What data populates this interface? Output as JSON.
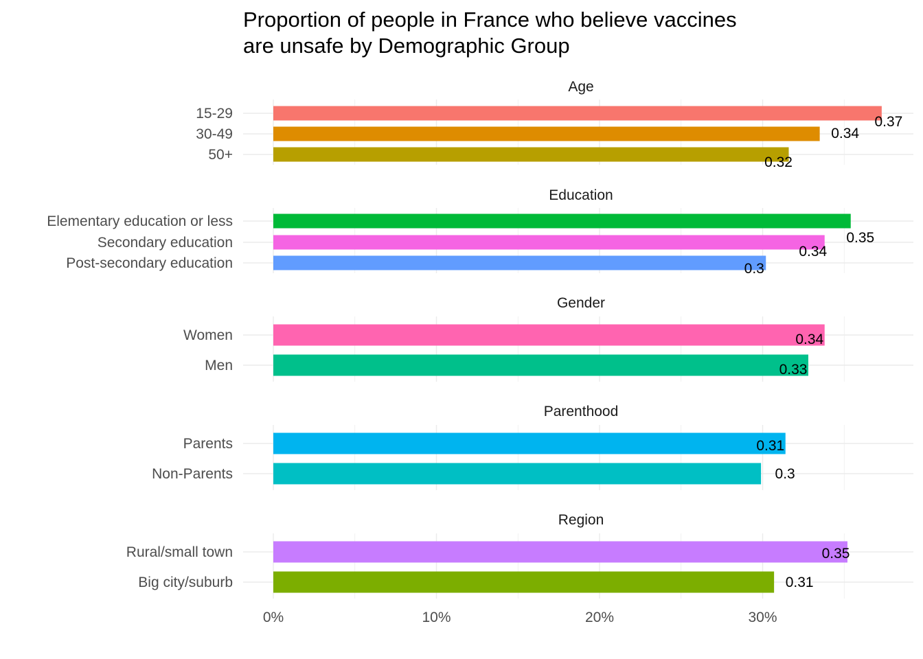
{
  "chart_data": {
    "type": "bar",
    "orientation": "horizontal",
    "title_lines": [
      "Proportion of people in France who believe vaccines",
      "are unsafe by Demographic Group"
    ],
    "xlim": [
      0,
      0.37
    ],
    "x_ticks": [
      {
        "value": 0,
        "label": "0%"
      },
      {
        "value": 0.1,
        "label": "10%"
      },
      {
        "value": 0.2,
        "label": "20%"
      },
      {
        "value": 0.3,
        "label": "30%"
      }
    ],
    "grid": true,
    "legend": "none",
    "facets": [
      {
        "name": "Age",
        "bars": [
          {
            "category": "15-29",
            "value": 0.373,
            "label": "0.37",
            "color": "#F8766D"
          },
          {
            "category": "30-49",
            "value": 0.335,
            "label": "0.34",
            "color": "#DE8C00"
          },
          {
            "category": "50+",
            "value": 0.316,
            "label": "0.32",
            "color": "#B79F00"
          }
        ]
      },
      {
        "name": "Education",
        "bars": [
          {
            "category": "Elementary education or less",
            "value": 0.354,
            "label": "0.35",
            "color": "#00BA38"
          },
          {
            "category": "Secondary education",
            "value": 0.338,
            "label": "0.34",
            "color": "#F564E3"
          },
          {
            "category": "Post-secondary education",
            "value": 0.302,
            "label": "0.3",
            "color": "#619CFF"
          }
        ]
      },
      {
        "name": "Gender",
        "bars": [
          {
            "category": "Women",
            "value": 0.338,
            "label": "0.34",
            "color": "#FF64B0"
          },
          {
            "category": "Men",
            "value": 0.328,
            "label": "0.33",
            "color": "#00C08B"
          }
        ]
      },
      {
        "name": "Parenthood",
        "bars": [
          {
            "category": "Parents",
            "value": 0.314,
            "label": "0.31",
            "color": "#00B4EF"
          },
          {
            "category": "Non-Parents",
            "value": 0.299,
            "label": "0.3",
            "color": "#00BFC4"
          }
        ]
      },
      {
        "name": "Region",
        "bars": [
          {
            "category": "Rural/small town",
            "value": 0.352,
            "label": "0.35",
            "color": "#C77CFF"
          },
          {
            "category": "Big city/suburb",
            "value": 0.307,
            "label": "0.31",
            "color": "#7CAE00"
          }
        ]
      }
    ]
  }
}
